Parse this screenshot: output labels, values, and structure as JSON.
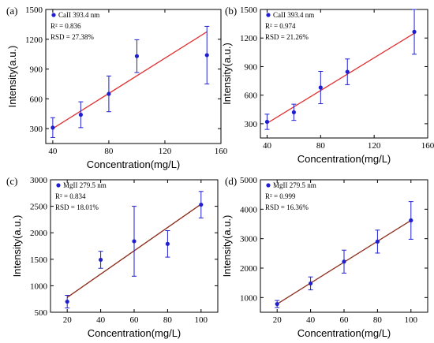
{
  "chart_data": [
    {
      "panel": "(a)",
      "type": "scatter",
      "legend": "CaII 393.4 nm",
      "r2": "R² = 0.836",
      "rsd": "RSD = 27.38%",
      "xlabel": "Concentration(mg/L)",
      "ylabel": "Intensity(a.u.)",
      "xlim": [
        35,
        160
      ],
      "ylim": [
        150,
        1500
      ],
      "xticks": [
        40,
        80,
        120,
        160
      ],
      "yticks": [
        300,
        600,
        900,
        1200,
        1500
      ],
      "points": [
        {
          "x": 40,
          "y": 310,
          "err": 100
        },
        {
          "x": 60,
          "y": 440,
          "err": 130
        },
        {
          "x": 80,
          "y": 650,
          "err": 180
        },
        {
          "x": 100,
          "y": 1030,
          "err": 165
        },
        {
          "x": 150,
          "y": 1040,
          "err": 290
        }
      ],
      "fit": [
        [
          40,
          300
        ],
        [
          150,
          1275
        ]
      ],
      "marker_color": "#1f1fd0",
      "line_color": "#e03030"
    },
    {
      "panel": "(b)",
      "type": "scatter",
      "legend": "CaII 393.4 nm",
      "r2": "R² = 0.974",
      "rsd": "RSD = 21.26%",
      "xlabel": "Concentration(mg/L)",
      "ylabel": "Intensity(a.u.)",
      "xlim": [
        35,
        160
      ],
      "ylim": [
        150,
        1500
      ],
      "xticks": [
        40,
        80,
        120,
        160
      ],
      "yticks": [
        300,
        600,
        900,
        1200,
        1500
      ],
      "points": [
        {
          "x": 40,
          "y": 320,
          "err": 80
        },
        {
          "x": 60,
          "y": 420,
          "err": 85
        },
        {
          "x": 80,
          "y": 680,
          "err": 170
        },
        {
          "x": 100,
          "y": 845,
          "err": 135
        },
        {
          "x": 150,
          "y": 1265,
          "err": 235
        }
      ],
      "fit": [
        [
          40,
          305
        ],
        [
          150,
          1250
        ]
      ],
      "marker_color": "#1f1fd0",
      "line_color": "#e03030"
    },
    {
      "panel": "(c)",
      "type": "scatter",
      "legend": "MgII 279.5 nm",
      "r2": "R² = 0.834",
      "rsd": "RSD = 18.01%",
      "xlabel": "Concentration(mg/L)",
      "ylabel": "Intensity(a.u.)",
      "xlim": [
        10,
        110
      ],
      "ylim": [
        500,
        3000
      ],
      "xticks": [
        20,
        40,
        60,
        80,
        100
      ],
      "yticks": [
        500,
        1000,
        1500,
        2000,
        2500,
        3000
      ],
      "points": [
        {
          "x": 20,
          "y": 700,
          "err": 120
        },
        {
          "x": 40,
          "y": 1490,
          "err": 160
        },
        {
          "x": 60,
          "y": 1840,
          "err": 660
        },
        {
          "x": 80,
          "y": 1790,
          "err": 250
        },
        {
          "x": 100,
          "y": 2530,
          "err": 250
        }
      ],
      "fit": [
        [
          20,
          780
        ],
        [
          100,
          2540
        ]
      ],
      "marker_color": "#1f1fd0",
      "line_color": "#8b2a1a"
    },
    {
      "panel": "(d)",
      "type": "scatter",
      "legend": "MgII 279.5 nm",
      "r2": "R² = 0.999",
      "rsd": "RSD = 16.36%",
      "xlabel": "Concentration(mg/L)",
      "ylabel": "Intensity(a.u.)",
      "xlim": [
        10,
        110
      ],
      "ylim": [
        500,
        5000
      ],
      "xticks": [
        20,
        40,
        60,
        80,
        100
      ],
      "yticks": [
        1000,
        2000,
        3000,
        4000,
        5000
      ],
      "points": [
        {
          "x": 20,
          "y": 780,
          "err": 120
        },
        {
          "x": 40,
          "y": 1480,
          "err": 220
        },
        {
          "x": 60,
          "y": 2220,
          "err": 390
        },
        {
          "x": 80,
          "y": 2900,
          "err": 390
        },
        {
          "x": 100,
          "y": 3620,
          "err": 640
        }
      ],
      "fit": [
        [
          20,
          780
        ],
        [
          100,
          3620
        ]
      ],
      "marker_color": "#1f1fd0",
      "line_color": "#8b2a1a"
    }
  ]
}
